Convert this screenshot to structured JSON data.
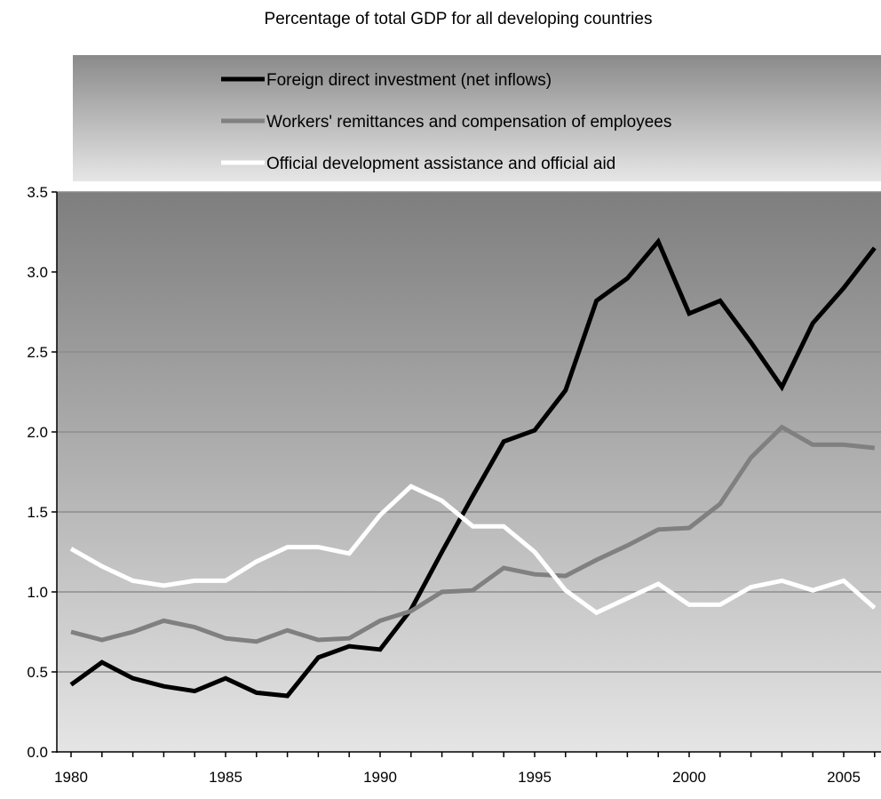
{
  "chart_data": {
    "type": "line",
    "title": "Percentage of total GDP for all developing countries",
    "xlabel": "",
    "ylabel": "",
    "xlim": [
      1980,
      2006
    ],
    "ylim": [
      0,
      3.5
    ],
    "grid": true,
    "legend_position": "top",
    "x_ticks": [
      "1980",
      "1985",
      "1990",
      "1995",
      "2000",
      "2005"
    ],
    "y_ticks": [
      "0.0",
      "0.5",
      "1.0",
      "1.5",
      "2.0",
      "2.5",
      "3.0",
      "3.5"
    ],
    "x": [
      1980,
      1981,
      1982,
      1983,
      1984,
      1985,
      1986,
      1987,
      1988,
      1989,
      1990,
      1991,
      1992,
      1993,
      1994,
      1995,
      1996,
      1997,
      1998,
      1999,
      2000,
      2001,
      2002,
      2003,
      2004,
      2005,
      2006
    ],
    "series": [
      {
        "name": "Foreign direct investment (net inflows)",
        "color": "#000000",
        "values": [
          0.42,
          0.56,
          0.46,
          0.41,
          0.38,
          0.46,
          0.37,
          0.35,
          0.59,
          0.66,
          0.64,
          0.89,
          1.25,
          1.6,
          1.94,
          2.01,
          2.26,
          2.82,
          2.96,
          3.19,
          2.74,
          2.82,
          2.56,
          2.28,
          2.68,
          2.9,
          3.15
        ]
      },
      {
        "name": "Workers' remittances and compensation of employees",
        "color": "#808080",
        "values": [
          0.75,
          0.7,
          0.75,
          0.82,
          0.78,
          0.71,
          0.69,
          0.76,
          0.7,
          0.71,
          0.82,
          0.88,
          1.0,
          1.01,
          1.15,
          1.11,
          1.1,
          1.2,
          1.29,
          1.39,
          1.4,
          1.55,
          1.84,
          2.03,
          1.92,
          1.92,
          1.9
        ]
      },
      {
        "name": "Official development assistance  and official aid",
        "color": "#ffffff",
        "values": [
          1.27,
          1.16,
          1.07,
          1.04,
          1.07,
          1.07,
          1.19,
          1.28,
          1.28,
          1.24,
          1.48,
          1.66,
          1.57,
          1.41,
          1.41,
          1.25,
          1.01,
          0.87,
          0.96,
          1.05,
          0.92,
          0.92,
          1.03,
          1.07,
          1.01,
          1.07,
          0.9
        ]
      }
    ]
  }
}
